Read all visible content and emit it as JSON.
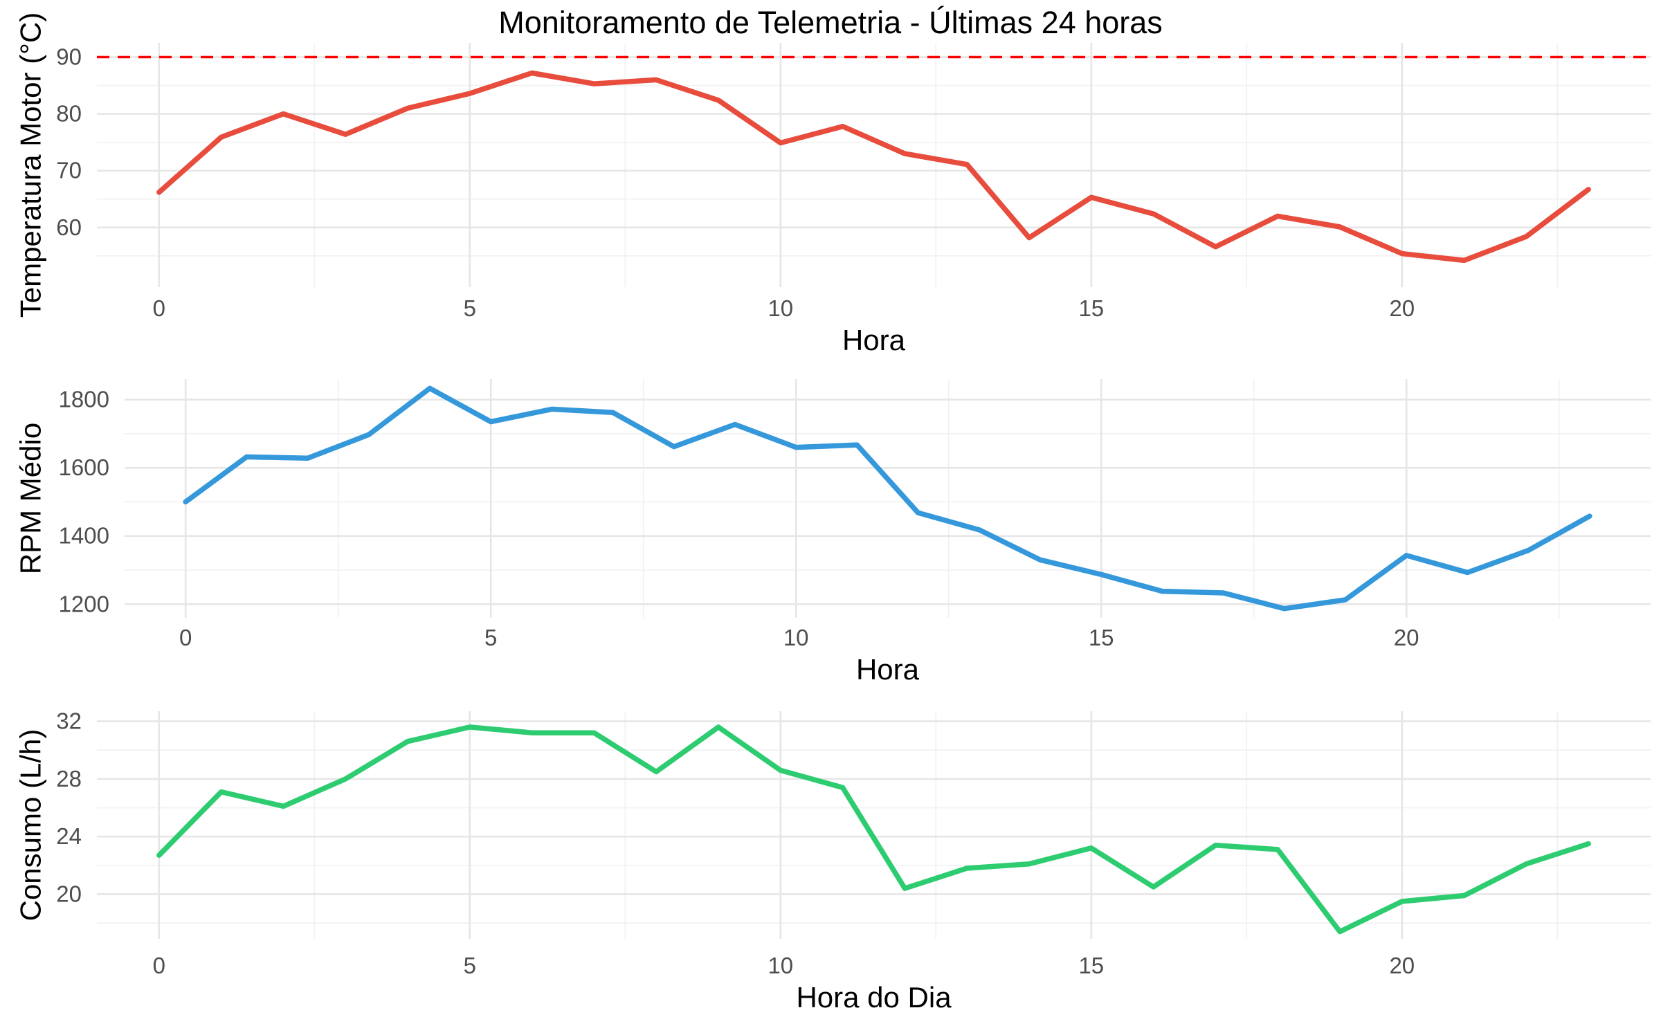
{
  "title": "Monitoramento de Telemetria - Últimas 24 horas",
  "chart_data": [
    {
      "type": "line",
      "xlabel": "Hora",
      "ylabel": "Temperatura Motor (°C)",
      "x": [
        0,
        1,
        2,
        3,
        4,
        5,
        6,
        7,
        8,
        9,
        10,
        11,
        12,
        13,
        14,
        15,
        16,
        17,
        18,
        19,
        20,
        21,
        22,
        23
      ],
      "xticks": [
        0,
        5,
        10,
        15,
        20
      ],
      "xlim": [
        -1.0,
        24.0
      ],
      "yticks": [
        60,
        70,
        80,
        90
      ],
      "ylim": [
        49.5,
        92.5
      ],
      "grid": true,
      "color": "#E74C3C",
      "reference_line": {
        "y": 90,
        "style": "dashed",
        "color": "#FF0000"
      },
      "series": [
        {
          "values": [
            66.2,
            75.9,
            80.0,
            76.4,
            81.0,
            83.6,
            87.2,
            85.3,
            86.0,
            82.4,
            74.9,
            77.8,
            73.0,
            71.1,
            58.2,
            65.3,
            62.4,
            56.6,
            62.0,
            60.1,
            55.4,
            54.2,
            58.4,
            66.7
          ]
        }
      ]
    },
    {
      "type": "line",
      "xlabel": "Hora",
      "ylabel": "RPM Médio",
      "x": [
        0,
        1,
        2,
        3,
        4,
        5,
        6,
        7,
        8,
        9,
        10,
        11,
        12,
        13,
        14,
        15,
        16,
        17,
        18,
        19,
        20,
        21,
        22,
        23
      ],
      "xticks": [
        0,
        5,
        10,
        15,
        20
      ],
      "xlim": [
        -1.0,
        24.0
      ],
      "yticks": [
        1200,
        1400,
        1600,
        1800
      ],
      "ylim": [
        1160,
        1860
      ],
      "grid": true,
      "color": "#3498DB",
      "series": [
        {
          "values": [
            1500,
            1632,
            1628,
            1697,
            1833,
            1735,
            1772,
            1762,
            1662,
            1727,
            1660,
            1667,
            1468,
            1418,
            1330,
            1287,
            1238,
            1233,
            1187,
            1213,
            1343,
            1293,
            1358,
            1458
          ]
        }
      ]
    },
    {
      "type": "line",
      "xlabel": "Hora do Dia",
      "ylabel": "Consumo (L/h)",
      "x": [
        0,
        1,
        2,
        3,
        4,
        5,
        6,
        7,
        8,
        9,
        10,
        11,
        12,
        13,
        14,
        15,
        16,
        17,
        18,
        19,
        20,
        21,
        22,
        23
      ],
      "xticks": [
        0,
        5,
        10,
        15,
        20
      ],
      "xlim": [
        -1.0,
        24.0
      ],
      "yticks": [
        20,
        24,
        28,
        32
      ],
      "ylim": [
        16.9,
        32.7
      ],
      "grid": true,
      "color": "#2ECC71",
      "series": [
        {
          "values": [
            22.7,
            27.1,
            26.1,
            28.0,
            30.6,
            31.6,
            31.2,
            31.2,
            28.5,
            31.6,
            28.6,
            27.4,
            20.4,
            21.8,
            22.1,
            23.2,
            20.5,
            23.4,
            23.1,
            17.4,
            19.5,
            19.9,
            22.1,
            23.5
          ]
        }
      ]
    }
  ]
}
